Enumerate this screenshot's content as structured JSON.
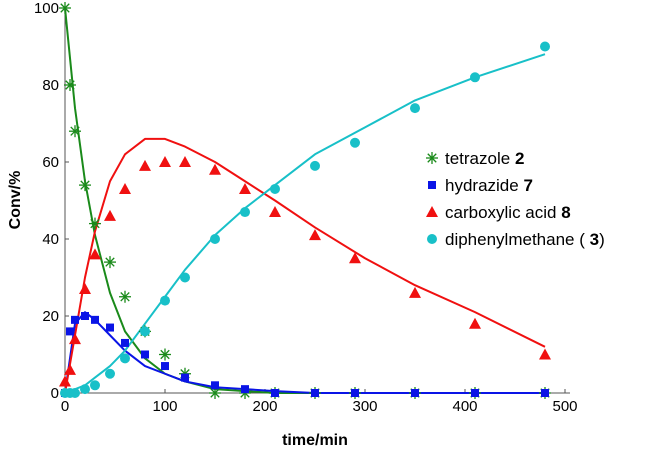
{
  "chart_data": {
    "type": "scatter",
    "title": "",
    "xlabel": "time/min",
    "ylabel": "Conv/%",
    "xlim": [
      0,
      500
    ],
    "ylim": [
      0,
      100
    ],
    "xticks": [
      0,
      100,
      200,
      300,
      400,
      500
    ],
    "yticks": [
      0,
      20,
      40,
      60,
      80,
      100
    ],
    "grid": false,
    "legend_position": "center-right",
    "x": [
      0,
      5,
      10,
      20,
      30,
      45,
      60,
      80,
      100,
      120,
      150,
      180,
      210,
      250,
      290,
      350,
      410,
      480
    ],
    "series": [
      {
        "name": "tetrazole",
        "label_num": "2",
        "color": "#1a8a1a",
        "marker": "asterisk",
        "values": [
          100,
          80,
          68,
          54,
          44,
          34,
          25,
          16,
          10,
          5,
          0,
          0,
          0,
          0,
          0,
          0,
          0,
          0
        ]
      },
      {
        "name": "hydrazide",
        "label_num": "7",
        "color": "#0a14e6",
        "marker": "square",
        "values": [
          0,
          16,
          19,
          20,
          19,
          17,
          13,
          10,
          7,
          4,
          2,
          1,
          0,
          0,
          0,
          0,
          0,
          0
        ]
      },
      {
        "name": "carboxylic acid",
        "label_num": "8",
        "color": "#f01010",
        "marker": "triangle",
        "values": [
          3,
          6,
          14,
          27,
          36,
          46,
          53,
          59,
          60,
          60,
          58,
          53,
          47,
          41,
          35,
          26,
          18,
          10
        ]
      },
      {
        "name": "diphenylmethane (",
        "label_num": "3",
        "label_suffix": ")",
        "color": "#18c0c8",
        "marker": "circle",
        "values": [
          0,
          0,
          0,
          1,
          2,
          5,
          9,
          16,
          24,
          30,
          40,
          47,
          53,
          59,
          65,
          74,
          82,
          90
        ]
      }
    ],
    "fit_x": [
      0,
      10,
      20,
      30,
      45,
      60,
      80,
      100,
      120,
      150,
      180,
      210,
      250,
      300,
      350,
      410,
      480
    ],
    "fits": [
      [
        100,
        74,
        55,
        41,
        26,
        16,
        9,
        5,
        3,
        1,
        0.5,
        0,
        0,
        0,
        0,
        0,
        0
      ],
      [
        0,
        18,
        21,
        19,
        15,
        11,
        7,
        5,
        3,
        1.5,
        1,
        0.5,
        0,
        0,
        0,
        0,
        0
      ],
      [
        0,
        15,
        30,
        42,
        55,
        62,
        66,
        66,
        64,
        60,
        55,
        50,
        43,
        35,
        28,
        21,
        12
      ],
      [
        0,
        1,
        2,
        4,
        7,
        11,
        18,
        25,
        32,
        41,
        48,
        54,
        62,
        69,
        76,
        82,
        88
      ]
    ]
  }
}
